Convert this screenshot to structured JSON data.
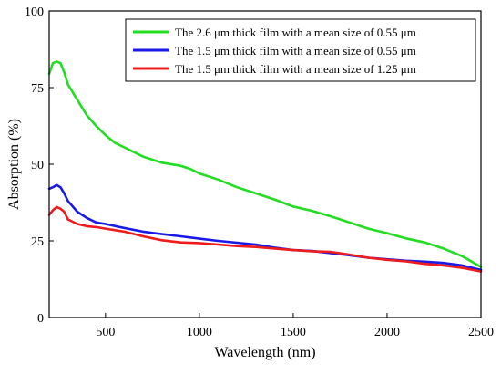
{
  "chart_data": {
    "type": "line",
    "title": "",
    "xlabel": "Wavelength (nm)",
    "ylabel": "Absorption (%)",
    "xlim": [
      200,
      2500
    ],
    "ylim": [
      0,
      100
    ],
    "xticks": [
      500,
      1000,
      1500,
      2000,
      2500
    ],
    "yticks": [
      0,
      25,
      50,
      75,
      100
    ],
    "grid": false,
    "legend_position": "top-right",
    "series": [
      {
        "name": "The 2.6 μm thick film with a mean size of 0.55 μm",
        "color": "#22dd22",
        "x": [
          200,
          220,
          240,
          260,
          280,
          300,
          350,
          400,
          450,
          500,
          550,
          600,
          700,
          800,
          900,
          950,
          1000,
          1100,
          1200,
          1300,
          1400,
          1500,
          1600,
          1700,
          1800,
          1900,
          2000,
          2100,
          2200,
          2300,
          2400,
          2500
        ],
        "y": [
          79.5,
          83,
          83.5,
          83,
          80,
          76,
          71,
          66,
          62.5,
          59.5,
          57,
          55.5,
          52.5,
          50.5,
          49.5,
          48.5,
          47,
          45,
          42.5,
          40.5,
          38.5,
          36.2,
          34.8,
          33,
          31,
          29,
          27.5,
          25.8,
          24.5,
          22.5,
          20,
          16.5
        ]
      },
      {
        "name": "The 1.5 μm thick film with a mean size of 0.55 μm",
        "color": "#1a1ae6",
        "x": [
          200,
          220,
          240,
          260,
          280,
          300,
          350,
          400,
          450,
          500,
          600,
          700,
          800,
          900,
          1000,
          1100,
          1200,
          1300,
          1400,
          1500,
          1600,
          1700,
          1800,
          1900,
          2000,
          2100,
          2200,
          2300,
          2400,
          2500
        ],
        "y": [
          42,
          42.5,
          43.2,
          42.5,
          40.5,
          38,
          34.5,
          32.5,
          31,
          30.5,
          29.2,
          28,
          27.2,
          26.5,
          25.7,
          25,
          24.4,
          23.8,
          22.8,
          22,
          21.7,
          21,
          20.3,
          19.5,
          19,
          18.5,
          18.2,
          17.8,
          17,
          15.5
        ]
      },
      {
        "name": "The 1.5 μm thick film with a mean size of 1.25 μm",
        "color": "#ee1c1c",
        "x": [
          200,
          220,
          240,
          260,
          280,
          300,
          350,
          400,
          450,
          500,
          600,
          700,
          800,
          900,
          1000,
          1100,
          1200,
          1300,
          1400,
          1500,
          1600,
          1700,
          1800,
          1900,
          2000,
          2100,
          2200,
          2300,
          2400,
          2500
        ],
        "y": [
          33.5,
          35,
          36,
          35.5,
          34.5,
          32,
          30.5,
          29.8,
          29.5,
          29,
          28,
          26.5,
          25.2,
          24.5,
          24.3,
          23.8,
          23.3,
          23,
          22.5,
          22,
          21.6,
          21.4,
          20.5,
          19.5,
          18.8,
          18.3,
          17.5,
          17,
          16.2,
          15
        ]
      }
    ]
  }
}
